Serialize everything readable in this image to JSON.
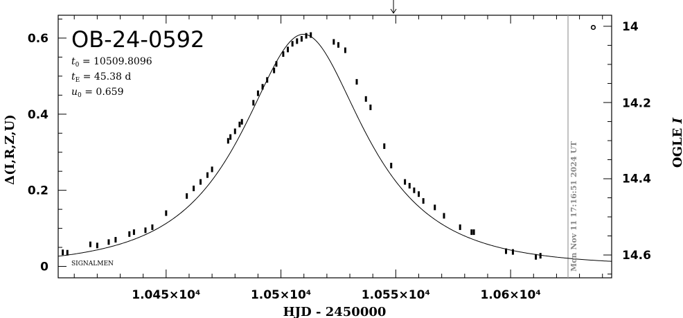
{
  "chart_data": {
    "type": "scatter",
    "title": "OB-24-0592",
    "params": {
      "t0": "10509.8096",
      "tE": "45.38",
      "tE_unit": "d",
      "u0": "0.659"
    },
    "xlabel": "HJD - 2450000",
    "ylabel_left": "Δ(I,R,Z,U)",
    "ylabel_right": "OGLE",
    "ylabel_right_italic": "I",
    "xlim": [
      10403,
      10644
    ],
    "ylim": [
      -0.03,
      0.66
    ],
    "x_ticks": [
      10450,
      10500,
      10550,
      10600
    ],
    "x_tick_labels": [
      "1.045×10⁴",
      "1.05×10⁴",
      "1.055×10⁴",
      "1.06×10⁴"
    ],
    "y_ticks": [
      0,
      0.2,
      0.4,
      0.6
    ],
    "y_tick_labels": [
      "0",
      "0.2",
      "0.4",
      "0.6"
    ],
    "right_ticks": [
      {
        "delta": 0.631,
        "label": "14"
      },
      {
        "delta": 0.43,
        "label": "14.2"
      },
      {
        "delta": 0.231,
        "label": "14.4"
      },
      {
        "delta": 0.03,
        "label": "14.6"
      }
    ],
    "model": {
      "t0": 10509.8096,
      "tE": 45.38,
      "u0": 0.659
    },
    "series": [
      {
        "points": [
          [
            10405,
            0.037
          ],
          [
            10407,
            0.036
          ],
          [
            10417,
            0.058
          ],
          [
            10420,
            0.055
          ],
          [
            10425,
            0.064
          ],
          [
            10428,
            0.07
          ],
          [
            10434,
            0.085
          ],
          [
            10436,
            0.09
          ],
          [
            10441,
            0.095
          ],
          [
            10444,
            0.103
          ],
          [
            10450,
            0.14
          ],
          [
            10459,
            0.185
          ],
          [
            10462,
            0.205
          ],
          [
            10465,
            0.222
          ],
          [
            10468,
            0.24
          ],
          [
            10470,
            0.255
          ],
          [
            10477,
            0.33
          ],
          [
            10478,
            0.34
          ],
          [
            10480,
            0.355
          ],
          [
            10482,
            0.373
          ],
          [
            10483,
            0.38
          ],
          [
            10488,
            0.43
          ],
          [
            10490,
            0.455
          ],
          [
            10492,
            0.472
          ],
          [
            10494,
            0.49
          ],
          [
            10497,
            0.515
          ],
          [
            10498,
            0.532
          ],
          [
            10501,
            0.558
          ],
          [
            10503,
            0.57
          ],
          [
            10505,
            0.585
          ],
          [
            10507,
            0.592
          ],
          [
            10509,
            0.598
          ],
          [
            10511,
            0.606
          ],
          [
            10513,
            0.608
          ],
          [
            10523,
            0.59
          ],
          [
            10525,
            0.582
          ],
          [
            10528,
            0.568
          ],
          [
            10533,
            0.485
          ],
          [
            10537,
            0.44
          ],
          [
            10539,
            0.418
          ],
          [
            10545,
            0.316
          ],
          [
            10548,
            0.265
          ],
          [
            10554,
            0.222
          ],
          [
            10556,
            0.212
          ],
          [
            10558,
            0.2
          ],
          [
            10560,
            0.19
          ],
          [
            10562,
            0.172
          ],
          [
            10567,
            0.155
          ],
          [
            10571,
            0.133
          ],
          [
            10578,
            0.103
          ],
          [
            10583,
            0.09
          ],
          [
            10584,
            0.09
          ],
          [
            10598,
            0.04
          ],
          [
            10601,
            0.038
          ],
          [
            10611,
            0.025
          ],
          [
            10613,
            0.028
          ]
        ]
      }
    ],
    "open_marker": {
      "x": 10636,
      "delta": 0.628
    },
    "annotations": {
      "corner_label": "SIGNALMEN",
      "timestamp": "Mon Nov 11 17:16:51 2024 UT",
      "timestamp_x": 10625,
      "arrow_x": 10549
    }
  }
}
